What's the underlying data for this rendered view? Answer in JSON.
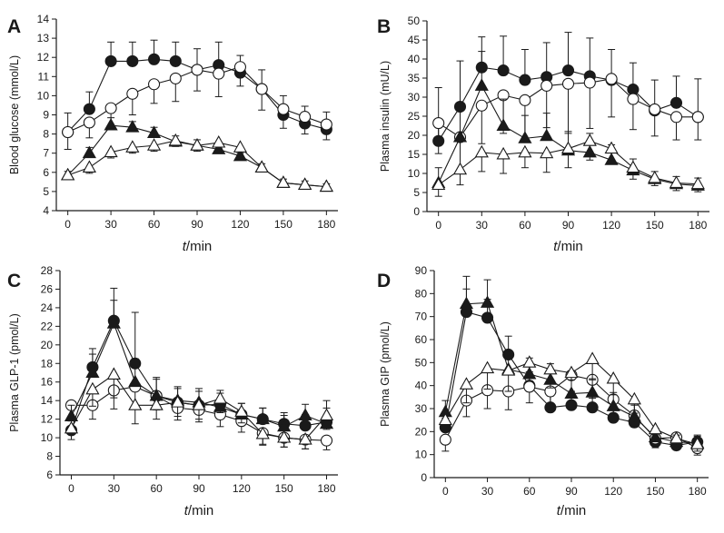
{
  "figure": {
    "background": "#ffffff",
    "ink": "#1a1a1a"
  },
  "chart_data": [
    {
      "panel": "A",
      "type": "line",
      "ylabel": "Blood glucose (mmol/L)",
      "xlabel": "t/min",
      "xlabel_parts": [
        "t",
        "/min"
      ],
      "x_ticks": [
        0,
        30,
        60,
        90,
        120,
        150,
        180
      ],
      "y_ticks": [
        4,
        5,
        6,
        7,
        8,
        9,
        10,
        11,
        12,
        13,
        14
      ],
      "xlim": [
        -8,
        188
      ],
      "ylim": [
        4,
        14
      ],
      "x": [
        0,
        15,
        30,
        45,
        60,
        75,
        90,
        105,
        120,
        135,
        150,
        165,
        180
      ],
      "series": [
        {
          "marker": "circle",
          "filled": true,
          "values": [
            8.1,
            9.3,
            11.8,
            11.8,
            11.9,
            11.8,
            11.35,
            11.6,
            11.2,
            10.35,
            9.0,
            8.55,
            8.25
          ],
          "errors": [
            1.0,
            0.9,
            1.0,
            1.0,
            1.0,
            1.0,
            1.1,
            1.2,
            0.9,
            1.0,
            1.0,
            0.9,
            0.9
          ]
        },
        {
          "marker": "circle",
          "filled": false,
          "values": [
            8.1,
            8.6,
            9.35,
            10.1,
            10.6,
            10.9,
            11.35,
            11.15,
            11.5,
            10.35,
            9.3,
            8.9,
            8.5
          ],
          "errors": [
            0.9,
            0.8,
            0.9,
            1.1,
            1.0,
            1.2,
            1.1,
            1.2,
            1.0,
            1.1,
            1.0,
            0.9,
            0.8
          ]
        },
        {
          "marker": "triangle",
          "filled": true,
          "values": [
            5.85,
            7.0,
            8.45,
            8.35,
            8.05,
            7.6,
            7.4,
            7.2,
            6.85,
            6.25,
            5.45,
            5.35,
            5.25
          ],
          "errors": [
            0.2,
            0.3,
            0.4,
            0.3,
            0.3,
            0.3,
            0.3,
            0.3,
            0.3,
            0.2,
            0.2,
            0.2,
            0.15
          ]
        },
        {
          "marker": "triangle",
          "filled": false,
          "values": [
            5.85,
            6.25,
            7.05,
            7.3,
            7.4,
            7.65,
            7.4,
            7.55,
            7.3,
            6.25,
            5.45,
            5.35,
            5.25
          ],
          "errors": [
            0.2,
            0.3,
            0.3,
            0.3,
            0.3,
            0.3,
            0.3,
            0.3,
            0.3,
            0.2,
            0.2,
            0.15,
            0.15
          ]
        }
      ]
    },
    {
      "panel": "B",
      "type": "line",
      "ylabel": "Plasma insulin (mU/L)",
      "xlabel": "t/min",
      "xlabel_parts": [
        "t",
        "/min"
      ],
      "x_ticks": [
        0,
        30,
        60,
        90,
        120,
        150,
        180
      ],
      "y_ticks": [
        0,
        5,
        10,
        15,
        20,
        25,
        30,
        35,
        40,
        45,
        50
      ],
      "xlim": [
        -8,
        188
      ],
      "ylim": [
        0,
        50
      ],
      "x": [
        0,
        15,
        30,
        45,
        60,
        75,
        90,
        105,
        120,
        135,
        150,
        165,
        180
      ],
      "series": [
        {
          "marker": "circle",
          "filled": true,
          "values": [
            18.5,
            27.5,
            37.8,
            37.0,
            34.5,
            35.3,
            37.0,
            35.5,
            34.5,
            32.0,
            26.5,
            28.5,
            24.8
          ],
          "errors": [
            14,
            12,
            8,
            9,
            8,
            9,
            10,
            10,
            8,
            7,
            8,
            7,
            10
          ]
        },
        {
          "marker": "circle",
          "filled": false,
          "values": [
            23.2,
            19.5,
            27.8,
            30.5,
            29.2,
            33.0,
            33.5,
            33.8,
            34.8,
            29.5,
            26.8,
            24.8,
            24.8
          ],
          "errors": [
            8,
            9,
            10,
            10,
            10,
            11,
            13,
            12,
            10,
            8,
            7,
            6,
            6
          ]
        },
        {
          "marker": "triangle",
          "filled": true,
          "values": [
            7.5,
            19.5,
            33.0,
            22.5,
            19.2,
            19.8,
            16.0,
            15.5,
            13.5,
            10.8,
            8.5,
            7.2,
            6.8
          ],
          "errors": [
            4,
            8,
            9,
            7,
            6,
            6,
            5,
            5,
            4,
            3,
            2,
            2,
            2
          ]
        },
        {
          "marker": "triangle",
          "filled": false,
          "values": [
            7.0,
            11.0,
            15.5,
            15.0,
            15.5,
            15.3,
            16.5,
            18.5,
            16.5,
            11.5,
            8.8,
            7.5,
            7.2
          ],
          "errors": [
            3,
            4,
            5,
            5,
            4,
            5,
            5,
            5,
            4,
            3,
            2,
            2,
            2
          ]
        }
      ]
    },
    {
      "panel": "C",
      "type": "line",
      "ylabel": "Plasma GLP-1 (pmol/L)",
      "xlabel": "t/min",
      "xlabel_parts": [
        "t",
        "/min"
      ],
      "x_ticks": [
        0,
        30,
        60,
        90,
        120,
        150,
        180
      ],
      "y_ticks": [
        6,
        8,
        10,
        12,
        14,
        16,
        18,
        20,
        22,
        24,
        26,
        28
      ],
      "xlim": [
        -8,
        188
      ],
      "ylim": [
        6,
        28
      ],
      "x": [
        0,
        15,
        30,
        45,
        60,
        75,
        90,
        105,
        120,
        135,
        150,
        165,
        180
      ],
      "series": [
        {
          "marker": "circle",
          "filled": true,
          "values": [
            10.8,
            17.6,
            22.6,
            18.0,
            14.5,
            13.8,
            13.5,
            13.6,
            12.5,
            12.0,
            11.5,
            11.3,
            11.7
          ],
          "errors": [
            1.0,
            2.0,
            2.2,
            5.5,
            2.0,
            1.5,
            1.5,
            1.5,
            1.2,
            1.2,
            1.2,
            1.2,
            1.5
          ]
        },
        {
          "marker": "circle",
          "filled": false,
          "values": [
            13.5,
            13.5,
            15.1,
            15.5,
            14.5,
            13.2,
            13.0,
            12.5,
            11.8,
            10.5,
            10.0,
            9.8,
            9.7
          ],
          "errors": [
            1.2,
            1.5,
            2.0,
            2.0,
            1.5,
            1.3,
            1.3,
            1.3,
            1.2,
            1.2,
            1.0,
            1.0,
            1.0
          ]
        },
        {
          "marker": "triangle",
          "filled": true,
          "values": [
            12.3,
            17.0,
            22.3,
            16.0,
            14.5,
            14.0,
            13.8,
            13.3,
            12.5,
            12.0,
            11.2,
            12.4,
            11.5
          ],
          "errors": [
            1.2,
            2.0,
            3.8,
            2.5,
            1.8,
            1.5,
            1.5,
            1.5,
            1.2,
            1.2,
            1.2,
            1.2,
            2.5
          ]
        },
        {
          "marker": "triangle",
          "filled": false,
          "values": [
            11.0,
            15.2,
            16.8,
            13.5,
            13.5,
            13.8,
            13.5,
            14.2,
            12.8,
            10.4,
            10.0,
            9.8,
            12.4
          ],
          "errors": [
            1.2,
            1.8,
            2.5,
            2.0,
            1.5,
            1.5,
            1.5,
            1.5,
            1.2,
            1.2,
            1.0,
            1.0,
            1.5
          ]
        }
      ]
    },
    {
      "panel": "D",
      "type": "line",
      "ylabel": "Plasma GIP (pmol/L)",
      "xlabel": "t/min",
      "xlabel_parts": [
        "t",
        "/min"
      ],
      "x_ticks": [
        0,
        30,
        60,
        90,
        120,
        150,
        180
      ],
      "y_ticks": [
        0,
        10,
        20,
        30,
        40,
        50,
        60,
        70,
        80,
        90
      ],
      "xlim": [
        -8,
        188
      ],
      "ylim": [
        0,
        90
      ],
      "x": [
        0,
        15,
        30,
        45,
        60,
        75,
        90,
        105,
        120,
        135,
        150,
        165,
        180
      ],
      "series": [
        {
          "marker": "circle",
          "filled": true,
          "values": [
            21.8,
            72.0,
            69.5,
            53.5,
            40.0,
            30.5,
            31.5,
            30.5,
            26.0,
            24.0,
            15.5,
            14.0,
            15.5
          ],
          "errors": [
            4,
            10,
            8,
            8,
            6,
            5,
            5,
            5,
            5,
            5,
            4,
            3,
            3
          ]
        },
        {
          "marker": "circle",
          "filled": false,
          "values": [
            16.5,
            33.5,
            38.0,
            37.5,
            39.5,
            37.5,
            44.5,
            42.5,
            34.0,
            27.0,
            17.0,
            17.5,
            12.8
          ],
          "errors": [
            5,
            7,
            8,
            8,
            7,
            6,
            7,
            8,
            6,
            5,
            4,
            4,
            3
          ]
        },
        {
          "marker": "triangle",
          "filled": true,
          "values": [
            28.5,
            75.5,
            76.0,
            47.0,
            45.0,
            42.5,
            36.5,
            37.0,
            31.0,
            26.5,
            17.5,
            15.5,
            15.0
          ],
          "errors": [
            5,
            12,
            10,
            8,
            7,
            7,
            6,
            6,
            6,
            5,
            4,
            3,
            3
          ]
        },
        {
          "marker": "triangle",
          "filled": false,
          "values": [
            25.0,
            40.5,
            47.5,
            46.5,
            50.0,
            47.0,
            45.5,
            51.5,
            43.0,
            34.0,
            21.0,
            17.0,
            14.5
          ],
          "errors": [
            5,
            8,
            9,
            9,
            8,
            8,
            8,
            9,
            7,
            6,
            5,
            4,
            3
          ]
        }
      ]
    }
  ]
}
